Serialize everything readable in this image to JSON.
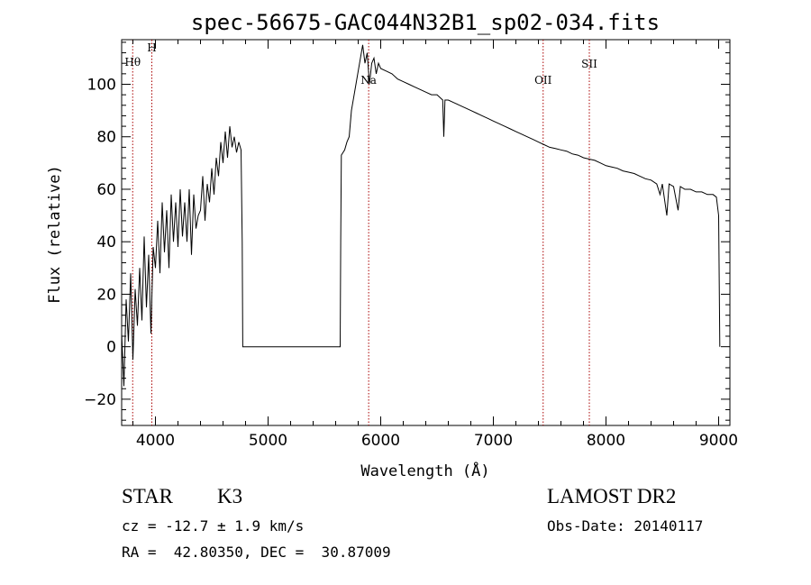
{
  "chart_data": {
    "type": "line",
    "title": "spec-56675-GAC044N32B1_sp02-034.fits",
    "xlabel": "Wavelength (Å)",
    "ylabel": "Flux (relative)",
    "xlim": [
      3700,
      9100
    ],
    "ylim": [
      -30,
      117
    ],
    "x_ticks": [
      4000,
      5000,
      6000,
      7000,
      8000,
      9000
    ],
    "y_ticks": [
      -20,
      0,
      20,
      40,
      60,
      80,
      100
    ],
    "grid": false,
    "line_color": "#000000",
    "marker_color": "#aa0000",
    "spectral_lines": [
      {
        "name": "Hθ",
        "wavelength": 3798
      },
      {
        "name": "H",
        "wavelength": 3968
      },
      {
        "name": "Na",
        "wavelength": 5893
      },
      {
        "name": "OII",
        "wavelength": 7442
      },
      {
        "name": "SII",
        "wavelength": 7852
      }
    ],
    "series": [
      {
        "points": [
          [
            3700,
            5
          ],
          [
            3720,
            -15
          ],
          [
            3740,
            18
          ],
          [
            3760,
            2
          ],
          [
            3780,
            28
          ],
          [
            3800,
            -5
          ],
          [
            3820,
            22
          ],
          [
            3840,
            8
          ],
          [
            3860,
            30
          ],
          [
            3880,
            10
          ],
          [
            3900,
            42
          ],
          [
            3920,
            15
          ],
          [
            3940,
            35
          ],
          [
            3960,
            5
          ],
          [
            3980,
            38
          ],
          [
            4000,
            30
          ],
          [
            4020,
            48
          ],
          [
            4040,
            28
          ],
          [
            4060,
            55
          ],
          [
            4080,
            36
          ],
          [
            4100,
            52
          ],
          [
            4120,
            30
          ],
          [
            4140,
            58
          ],
          [
            4160,
            40
          ],
          [
            4180,
            55
          ],
          [
            4200,
            38
          ],
          [
            4220,
            60
          ],
          [
            4240,
            42
          ],
          [
            4260,
            55
          ],
          [
            4280,
            40
          ],
          [
            4300,
            60
          ],
          [
            4320,
            35
          ],
          [
            4340,
            58
          ],
          [
            4360,
            45
          ],
          [
            4380,
            50
          ],
          [
            4400,
            52
          ],
          [
            4420,
            65
          ],
          [
            4440,
            48
          ],
          [
            4460,
            62
          ],
          [
            4480,
            55
          ],
          [
            4500,
            68
          ],
          [
            4520,
            58
          ],
          [
            4540,
            72
          ],
          [
            4560,
            65
          ],
          [
            4580,
            78
          ],
          [
            4600,
            70
          ],
          [
            4620,
            82
          ],
          [
            4640,
            72
          ],
          [
            4660,
            84
          ],
          [
            4680,
            76
          ],
          [
            4700,
            80
          ],
          [
            4720,
            74
          ],
          [
            4740,
            78
          ],
          [
            4760,
            75
          ],
          [
            4770,
            40
          ],
          [
            4775,
            0
          ],
          [
            4800,
            0
          ],
          [
            5000,
            0
          ],
          [
            5200,
            0
          ],
          [
            5400,
            0
          ],
          [
            5600,
            0
          ],
          [
            5640,
            0
          ],
          [
            5645,
            40
          ],
          [
            5650,
            73
          ],
          [
            5680,
            75
          ],
          [
            5700,
            78
          ],
          [
            5720,
            80
          ],
          [
            5740,
            90
          ],
          [
            5760,
            95
          ],
          [
            5780,
            100
          ],
          [
            5800,
            105
          ],
          [
            5820,
            110
          ],
          [
            5840,
            115
          ],
          [
            5860,
            108
          ],
          [
            5880,
            112
          ],
          [
            5900,
            100
          ],
          [
            5920,
            108
          ],
          [
            5940,
            110
          ],
          [
            5960,
            104
          ],
          [
            5980,
            108
          ],
          [
            6000,
            106
          ],
          [
            6050,
            105
          ],
          [
            6100,
            104
          ],
          [
            6150,
            102
          ],
          [
            6200,
            101
          ],
          [
            6250,
            100
          ],
          [
            6300,
            99
          ],
          [
            6350,
            98
          ],
          [
            6400,
            97
          ],
          [
            6450,
            96
          ],
          [
            6500,
            96
          ],
          [
            6550,
            94
          ],
          [
            6560,
            80
          ],
          [
            6570,
            94
          ],
          [
            6600,
            94
          ],
          [
            6650,
            93
          ],
          [
            6700,
            92
          ],
          [
            6750,
            91
          ],
          [
            6800,
            90
          ],
          [
            6850,
            89
          ],
          [
            6900,
            88
          ],
          [
            6950,
            87
          ],
          [
            7000,
            86
          ],
          [
            7050,
            85
          ],
          [
            7100,
            84
          ],
          [
            7150,
            83
          ],
          [
            7200,
            82
          ],
          [
            7250,
            81
          ],
          [
            7300,
            80
          ],
          [
            7350,
            79
          ],
          [
            7400,
            78
          ],
          [
            7450,
            77
          ],
          [
            7500,
            76
          ],
          [
            7550,
            75.5
          ],
          [
            7600,
            75
          ],
          [
            7650,
            74.5
          ],
          [
            7700,
            73.5
          ],
          [
            7750,
            73
          ],
          [
            7800,
            72
          ],
          [
            7850,
            71.5
          ],
          [
            7900,
            71
          ],
          [
            7950,
            70
          ],
          [
            8000,
            69
          ],
          [
            8050,
            68.5
          ],
          [
            8100,
            68
          ],
          [
            8150,
            67
          ],
          [
            8200,
            66.5
          ],
          [
            8250,
            66
          ],
          [
            8300,
            65
          ],
          [
            8350,
            64
          ],
          [
            8400,
            63.5
          ],
          [
            8450,
            62
          ],
          [
            8480,
            58
          ],
          [
            8500,
            62
          ],
          [
            8540,
            50
          ],
          [
            8560,
            62
          ],
          [
            8600,
            61
          ],
          [
            8640,
            52
          ],
          [
            8660,
            61
          ],
          [
            8700,
            60
          ],
          [
            8750,
            60
          ],
          [
            8800,
            59
          ],
          [
            8850,
            59
          ],
          [
            8900,
            58
          ],
          [
            8950,
            58
          ],
          [
            8980,
            57
          ],
          [
            9000,
            50
          ],
          [
            9010,
            0
          ]
        ]
      }
    ]
  },
  "info": {
    "object_class": "STAR",
    "subclass": "K3",
    "survey": "LAMOST DR2",
    "velocity": "cz = -12.7 ± 1.9 km/s",
    "obs_date": "Obs-Date: 20140117",
    "coords": "RA =  42.80350, DEC =  30.87009"
  }
}
